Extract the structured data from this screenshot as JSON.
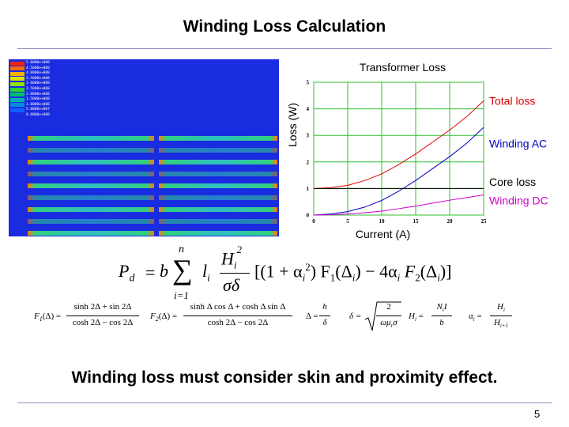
{
  "title": "Winding Loss Calculation",
  "conclusion": "Winding loss must consider skin and proximity effect.",
  "page_number": "5",
  "fem_legend": {
    "values": [
      "5.0000e+008",
      "4.5000e+008",
      "4.0000e+008",
      "3.5000e+008",
      "3.0000e+008",
      "2.5000e+008",
      "2.0000e+008",
      "1.5000e+008",
      "1.0000e+008",
      "5.0000e+007",
      "0.0000e+000"
    ],
    "colors": [
      "#ff2000",
      "#ff6a00",
      "#ffb000",
      "#e0e000",
      "#90e000",
      "#30d030",
      "#00c070",
      "#00b0b0",
      "#0090e0",
      "#1060ff",
      "#1a2ce0"
    ]
  },
  "chart_data": {
    "type": "line",
    "title": "Transformer Loss",
    "xlabel": "Current (A)",
    "ylabel": "Loss (W)",
    "xlim": [
      0,
      25
    ],
    "ylim": [
      0,
      5
    ],
    "xticks": [
      "0",
      "5",
      "10",
      "15",
      "20",
      "25"
    ],
    "yticks": [
      "0",
      "1",
      "2",
      "3",
      "4",
      "5"
    ],
    "grid": true,
    "legend": "right",
    "series": [
      {
        "name": "Total loss",
        "color": "#e00000",
        "x": [
          0,
          2.5,
          5,
          7.5,
          10,
          12.5,
          15,
          17.5,
          20,
          22.5,
          25
        ],
        "y": [
          1.0,
          1.03,
          1.12,
          1.3,
          1.55,
          1.9,
          2.3,
          2.75,
          3.2,
          3.7,
          4.3
        ]
      },
      {
        "name": "Winding AC",
        "color": "#0000c0",
        "x": [
          0,
          2.5,
          5,
          7.5,
          10,
          12.5,
          15,
          17.5,
          20,
          22.5,
          25
        ],
        "y": [
          0.0,
          0.04,
          0.13,
          0.3,
          0.55,
          0.9,
          1.3,
          1.75,
          2.2,
          2.7,
          3.3
        ]
      },
      {
        "name": "Core loss",
        "color": "#000000",
        "x": [
          0,
          25
        ],
        "y": [
          1.0,
          1.0
        ]
      },
      {
        "name": "Winding DC",
        "color": "#d000d0",
        "x": [
          0,
          2.5,
          5,
          7.5,
          10,
          12.5,
          15,
          17.5,
          20,
          22.5,
          25
        ],
        "y": [
          0.0,
          0.01,
          0.04,
          0.09,
          0.15,
          0.24,
          0.34,
          0.45,
          0.56,
          0.66,
          0.76
        ]
      }
    ]
  },
  "formulas": {
    "main": {
      "lhs": "P",
      "lhs_sub": "d",
      "eq": "=",
      "coef": "b",
      "sum_top": "n",
      "sum_bottom": "i=1",
      "li": "l",
      "li_sub": "i",
      "num": "H",
      "num_sub": "i",
      "num_sup": "2",
      "den": "σδ",
      "bracket_text": "[(1 + α",
      "alpha_sub": "i",
      "alpha_sup": "2",
      "mid": ") F",
      "f1_sub": "1",
      "arg1": "(Δ",
      "arg1_sub": "i",
      "minus": ") − 4α",
      "alpha2_sub": "i",
      "f2": "F",
      "f2_sub": "2",
      "arg2": "(Δ",
      "arg2_sub": "i",
      "close": ")]"
    },
    "f1": {
      "lhs": "F",
      "lhs_sub": "1",
      "arg": "(Δ) =",
      "num": "sinh 2Δ + sin 2Δ",
      "den": "cosh 2Δ − cos 2Δ"
    },
    "f2": {
      "lhs": "F",
      "lhs_sub": "2",
      "arg": "(Δ) =",
      "num": "sinh Δ cos Δ + cosh Δ sin Δ",
      "den": "cosh 2Δ − cos 2Δ"
    },
    "delta": {
      "lhs": "Δ =",
      "num": "h",
      "den": "δ"
    },
    "skin": {
      "lhs": "δ =",
      "num": "2",
      "den": "ωμ",
      "den_sub": "r",
      "den_tail": "σ"
    },
    "h": {
      "lhs": "H",
      "lhs_sub": "i",
      "eq": "=",
      "num": "N",
      "num_sub": "i",
      "num_tail": "I",
      "den": "b"
    },
    "alpha": {
      "lhs": "α",
      "lhs_sub": "i",
      "eq": "=",
      "num": "H",
      "num_sub": "i",
      "den": "H",
      "den_sub": "i+1"
    }
  }
}
